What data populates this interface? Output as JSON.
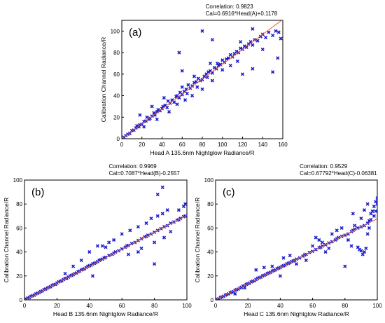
{
  "chart_data": [
    {
      "type": "scatter",
      "panel_label": "(a)",
      "stats_lines": [
        "Correlation: 0.9823",
        "Cal=0.6916*Head(A)+0.1178"
      ],
      "xlabel": "Head A 135.6nm Nightglow Radiance/R",
      "ylabel": "Calibration Channel Radiance/R",
      "xlim": [
        0,
        160
      ],
      "ylim": [
        0,
        110
      ],
      "xticks": [
        0,
        20,
        40,
        60,
        80,
        100,
        120,
        140,
        160
      ],
      "yticks": [
        0,
        20,
        40,
        60,
        80,
        100
      ],
      "fit": {
        "slope": 0.6916,
        "intercept": 0.1178
      },
      "points": [
        [
          2,
          1.5
        ],
        [
          4,
          3
        ],
        [
          6,
          4.2
        ],
        [
          8,
          5
        ],
        [
          10,
          7.5
        ],
        [
          12,
          8
        ],
        [
          14,
          10
        ],
        [
          15,
          12
        ],
        [
          17,
          11
        ],
        [
          18,
          13
        ],
        [
          20,
          13.5
        ],
        [
          22,
          16
        ],
        [
          24,
          16.5
        ],
        [
          25,
          20
        ],
        [
          27,
          18
        ],
        [
          28,
          19
        ],
        [
          30,
          21
        ],
        [
          32,
          24
        ],
        [
          33,
          22
        ],
        [
          35,
          25
        ],
        [
          36,
          27
        ],
        [
          38,
          26
        ],
        [
          40,
          28
        ],
        [
          41,
          30
        ],
        [
          43,
          31
        ],
        [
          45,
          29
        ],
        [
          46,
          35
        ],
        [
          48,
          33
        ],
        [
          50,
          36
        ],
        [
          52,
          34
        ],
        [
          54,
          39
        ],
        [
          55,
          40
        ],
        [
          57,
          38
        ],
        [
          58,
          43
        ],
        [
          60,
          41
        ],
        [
          62,
          44
        ],
        [
          64,
          46
        ],
        [
          65,
          42
        ],
        [
          66,
          50
        ],
        [
          68,
          47
        ],
        [
          70,
          49
        ],
        [
          72,
          52
        ],
        [
          74,
          53
        ],
        [
          75,
          48
        ],
        [
          76,
          56
        ],
        [
          78,
          54
        ],
        [
          80,
          55
        ],
        [
          82,
          58
        ],
        [
          84,
          60
        ],
        [
          85,
          57
        ],
        [
          86,
          62
        ],
        [
          88,
          63
        ],
        [
          90,
          61
        ],
        [
          92,
          66
        ],
        [
          94,
          65
        ],
        [
          95,
          70
        ],
        [
          96,
          68
        ],
        [
          98,
          69
        ],
        [
          100,
          73
        ],
        [
          102,
          71
        ],
        [
          104,
          74
        ],
        [
          106,
          75
        ],
        [
          108,
          78
        ],
        [
          110,
          76
        ],
        [
          112,
          79
        ],
        [
          114,
          81
        ],
        [
          116,
          80
        ],
        [
          118,
          84
        ],
        [
          120,
          83
        ],
        [
          122,
          86
        ],
        [
          124,
          85
        ],
        [
          126,
          88
        ],
        [
          128,
          90
        ],
        [
          130,
          87
        ],
        [
          132,
          92
        ],
        [
          135,
          91
        ],
        [
          138,
          95
        ],
        [
          140,
          97
        ],
        [
          143,
          94
        ],
        [
          146,
          99
        ],
        [
          150,
          96
        ],
        [
          153,
          100
        ],
        [
          156,
          99
        ],
        [
          158,
          93
        ],
        [
          18,
          22
        ],
        [
          22,
          11
        ],
        [
          30,
          30
        ],
        [
          35,
          18
        ],
        [
          42,
          38
        ],
        [
          47,
          25
        ],
        [
          55,
          32
        ],
        [
          60,
          48
        ],
        [
          63,
          36
        ],
        [
          70,
          40
        ],
        [
          72,
          58
        ],
        [
          80,
          46
        ],
        [
          88,
          70
        ],
        [
          90,
          54
        ],
        [
          100,
          64
        ],
        [
          108,
          68
        ],
        [
          115,
          72
        ],
        [
          118,
          90
        ],
        [
          60,
          63
        ],
        [
          80,
          100
        ],
        [
          90,
          92
        ],
        [
          57,
          80
        ],
        [
          130,
          102
        ],
        [
          140,
          83
        ],
        [
          150,
          62
        ],
        [
          155,
          75
        ],
        [
          130,
          65
        ],
        [
          120,
          60
        ]
      ]
    },
    {
      "type": "scatter",
      "panel_label": "(b)",
      "stats_lines": [
        "Correlation: 0.9969",
        "Cal=0.7087*Head(B)-0.2557"
      ],
      "xlabel": "Head B 135.6nm Nightglow Radiance/R",
      "ylabel": "Calibration Channel Radiance/R",
      "xlim": [
        0,
        100
      ],
      "ylim": [
        0,
        100
      ],
      "xticks": [
        0,
        20,
        40,
        60,
        80,
        100
      ],
      "yticks": [
        0,
        20,
        40,
        60,
        80,
        100
      ],
      "fit": {
        "slope": 0.7087,
        "intercept": -0.2557
      },
      "points": [
        [
          1,
          0.8
        ],
        [
          2,
          1.5
        ],
        [
          3,
          2
        ],
        [
          4,
          3
        ],
        [
          5,
          3.5
        ],
        [
          6,
          4
        ],
        [
          7,
          5
        ],
        [
          8,
          5.5
        ],
        [
          9,
          6.2
        ],
        [
          10,
          7
        ],
        [
          11,
          7.5
        ],
        [
          12,
          8.6
        ],
        [
          13,
          9
        ],
        [
          14,
          9.8
        ],
        [
          15,
          10.5
        ],
        [
          16,
          11
        ],
        [
          17,
          12
        ],
        [
          18,
          12.7
        ],
        [
          19,
          13
        ],
        [
          20,
          14
        ],
        [
          21,
          15
        ],
        [
          22,
          15.5
        ],
        [
          23,
          16
        ],
        [
          24,
          17
        ],
        [
          25,
          17.8
        ],
        [
          26,
          18
        ],
        [
          27,
          19
        ],
        [
          28,
          20
        ],
        [
          29,
          20.5
        ],
        [
          30,
          21
        ],
        [
          31,
          22
        ],
        [
          32,
          22.5
        ],
        [
          33,
          23.5
        ],
        [
          34,
          24
        ],
        [
          35,
          25
        ],
        [
          36,
          25.5
        ],
        [
          37,
          26
        ],
        [
          38,
          27
        ],
        [
          39,
          28
        ],
        [
          40,
          28.5
        ],
        [
          41,
          29
        ],
        [
          42,
          30
        ],
        [
          43,
          30.5
        ],
        [
          44,
          31
        ],
        [
          45,
          32
        ],
        [
          46,
          33
        ],
        [
          47,
          33.5
        ],
        [
          48,
          34
        ],
        [
          49,
          35
        ],
        [
          50,
          35.5
        ],
        [
          52,
          37
        ],
        [
          54,
          38
        ],
        [
          55,
          39
        ],
        [
          56,
          40
        ],
        [
          58,
          41
        ],
        [
          60,
          42.5
        ],
        [
          62,
          44
        ],
        [
          63,
          45
        ],
        [
          64,
          45.5
        ],
        [
          66,
          47
        ],
        [
          68,
          48
        ],
        [
          70,
          49.5
        ],
        [
          72,
          51
        ],
        [
          74,
          52.5
        ],
        [
          75,
          53
        ],
        [
          76,
          54
        ],
        [
          78,
          55
        ],
        [
          80,
          56.5
        ],
        [
          82,
          58
        ],
        [
          84,
          59.5
        ],
        [
          86,
          61
        ],
        [
          88,
          62
        ],
        [
          90,
          64
        ],
        [
          92,
          65
        ],
        [
          94,
          66.5
        ],
        [
          95,
          67
        ],
        [
          96,
          68
        ],
        [
          98,
          69.5
        ],
        [
          99,
          70
        ],
        [
          40,
          40
        ],
        [
          45,
          45
        ],
        [
          60,
          55
        ],
        [
          65,
          58
        ],
        [
          70,
          61
        ],
        [
          75,
          64
        ],
        [
          78,
          68
        ],
        [
          82,
          70
        ],
        [
          85,
          72
        ],
        [
          88,
          75
        ],
        [
          90,
          57
        ],
        [
          95,
          75
        ],
        [
          98,
          78
        ],
        [
          55,
          50
        ],
        [
          50,
          44
        ],
        [
          30,
          28
        ],
        [
          25,
          22
        ],
        [
          35,
          33
        ],
        [
          72,
          43
        ],
        [
          80,
          48
        ],
        [
          86,
          52
        ],
        [
          85,
          94
        ],
        [
          82,
          88
        ],
        [
          80,
          30
        ],
        [
          42,
          20
        ],
        [
          48,
          45
        ],
        [
          52,
          48
        ],
        [
          64,
          38
        ],
        [
          70,
          40
        ],
        [
          99,
          80
        ]
      ]
    },
    {
      "type": "scatter",
      "panel_label": "(c)",
      "stats_lines": [
        "Correlation: 0.9529",
        "Cal=0.67792*Head(C)-0.06381"
      ],
      "xlabel": "Head C 135.6nm Nightglow Radiance/R",
      "ylabel": "Calibration Channel Radiance/R",
      "xlim": [
        0,
        100
      ],
      "ylim": [
        0,
        100
      ],
      "xticks": [
        0,
        20,
        40,
        60,
        80,
        100
      ],
      "yticks": [
        0,
        20,
        40,
        60,
        80,
        100
      ],
      "fit": {
        "slope": 0.67792,
        "intercept": -0.06381
      },
      "points": [
        [
          1,
          0.5
        ],
        [
          2,
          1
        ],
        [
          3,
          2
        ],
        [
          4,
          2.5
        ],
        [
          5,
          3
        ],
        [
          6,
          4
        ],
        [
          7,
          4.5
        ],
        [
          8,
          5
        ],
        [
          9,
          6
        ],
        [
          10,
          6.5
        ],
        [
          11,
          7
        ],
        [
          12,
          8
        ],
        [
          13,
          8.5
        ],
        [
          14,
          9
        ],
        [
          15,
          10
        ],
        [
          16,
          10.5
        ],
        [
          17,
          11.5
        ],
        [
          18,
          12
        ],
        [
          19,
          13
        ],
        [
          20,
          13.5
        ],
        [
          21,
          14
        ],
        [
          22,
          15
        ],
        [
          23,
          15.5
        ],
        [
          24,
          16
        ],
        [
          25,
          17
        ],
        [
          26,
          18
        ],
        [
          27,
          18.5
        ],
        [
          28,
          19
        ],
        [
          29,
          20
        ],
        [
          30,
          20.5
        ],
        [
          31,
          21
        ],
        [
          32,
          22
        ],
        [
          33,
          22.5
        ],
        [
          34,
          23
        ],
        [
          35,
          24
        ],
        [
          36,
          24.5
        ],
        [
          37,
          25
        ],
        [
          38,
          26
        ],
        [
          39,
          26.5
        ],
        [
          40,
          27
        ],
        [
          41,
          28
        ],
        [
          42,
          28.5
        ],
        [
          43,
          29
        ],
        [
          44,
          30
        ],
        [
          45,
          30.5
        ],
        [
          46,
          31
        ],
        [
          47,
          32
        ],
        [
          48,
          32.5
        ],
        [
          49,
          33
        ],
        [
          50,
          34
        ],
        [
          52,
          35
        ],
        [
          54,
          36.5
        ],
        [
          55,
          37.5
        ],
        [
          56,
          38
        ],
        [
          58,
          39.5
        ],
        [
          60,
          40.5
        ],
        [
          62,
          42
        ],
        [
          64,
          43.5
        ],
        [
          65,
          44
        ],
        [
          66,
          45
        ],
        [
          68,
          46
        ],
        [
          70,
          47.5
        ],
        [
          72,
          48.5
        ],
        [
          74,
          50
        ],
        [
          75,
          51
        ],
        [
          76,
          52
        ],
        [
          78,
          53
        ],
        [
          80,
          54
        ],
        [
          82,
          55
        ],
        [
          84,
          57
        ],
        [
          85,
          58
        ],
        [
          86,
          59
        ],
        [
          88,
          60
        ],
        [
          90,
          61
        ],
        [
          92,
          62
        ],
        [
          94,
          64
        ],
        [
          95,
          66
        ],
        [
          96,
          67
        ],
        [
          98,
          70
        ],
        [
          99,
          74
        ],
        [
          100,
          80
        ],
        [
          12,
          5
        ],
        [
          18,
          10
        ],
        [
          25,
          25
        ],
        [
          30,
          27
        ],
        [
          35,
          28
        ],
        [
          40,
          20
        ],
        [
          42,
          35
        ],
        [
          46,
          37
        ],
        [
          50,
          30
        ],
        [
          56,
          33
        ],
        [
          60,
          45
        ],
        [
          62,
          52
        ],
        [
          64,
          50
        ],
        [
          66,
          48
        ],
        [
          68,
          40
        ],
        [
          70,
          43
        ],
        [
          72,
          55
        ],
        [
          75,
          58
        ],
        [
          78,
          60
        ],
        [
          80,
          28
        ],
        [
          82,
          50
        ],
        [
          84,
          45
        ],
        [
          86,
          62
        ],
        [
          88,
          44
        ],
        [
          89,
          42
        ],
        [
          90,
          41
        ],
        [
          91,
          38
        ],
        [
          92,
          40
        ],
        [
          93,
          43
        ],
        [
          94,
          55
        ],
        [
          95,
          60
        ],
        [
          96,
          72
        ],
        [
          97,
          74
        ],
        [
          98,
          78
        ],
        [
          99,
          82
        ],
        [
          100,
          85
        ],
        [
          90,
          68
        ],
        [
          92,
          75
        ],
        [
          85,
          72
        ],
        [
          94,
          80
        ]
      ]
    }
  ]
}
